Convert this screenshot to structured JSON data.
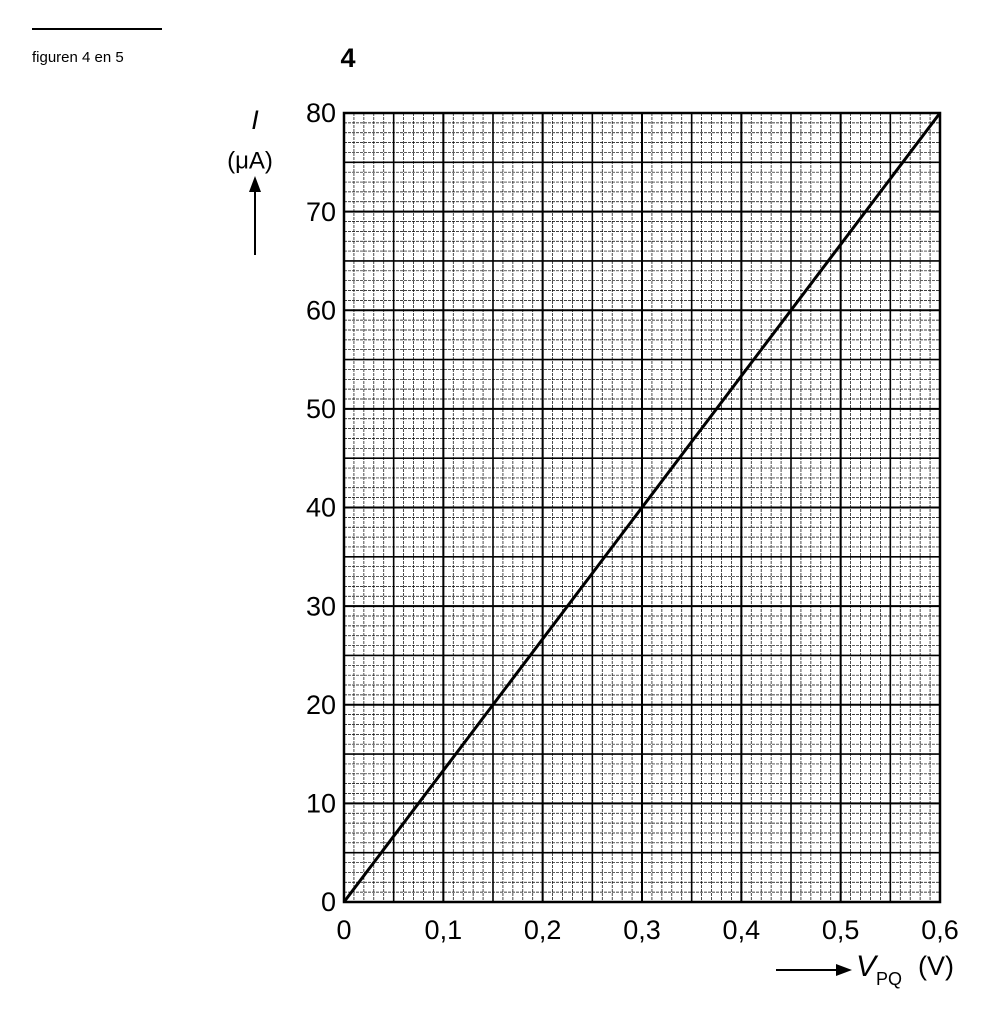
{
  "caption": "figuren 4 en 5",
  "figure_number": "4",
  "chart_data": {
    "type": "line",
    "y_label": {
      "symbol": "I",
      "unit": "(μA)"
    },
    "x_label": {
      "symbol": "V",
      "subscript": "PQ",
      "unit": "(V)"
    },
    "x": [
      0,
      0.6
    ],
    "series": [
      {
        "color": "#000000",
        "values": [
          0,
          80
        ]
      }
    ],
    "xlim": [
      0,
      0.6
    ],
    "xticks": [
      0,
      {
        "value": 0.1,
        "label": "0,1"
      },
      {
        "value": 0.2,
        "label": "0,2"
      },
      {
        "value": 0.3,
        "label": "0,3"
      },
      {
        "value": 0.4,
        "label": "0,4"
      },
      {
        "value": 0.5,
        "label": "0,5"
      },
      {
        "value": 0.6,
        "label": "0,6"
      }
    ],
    "ylim": [
      0,
      80
    ],
    "yticks": [
      0,
      10,
      20,
      30,
      40,
      50,
      60,
      70,
      80
    ],
    "grid": true
  }
}
